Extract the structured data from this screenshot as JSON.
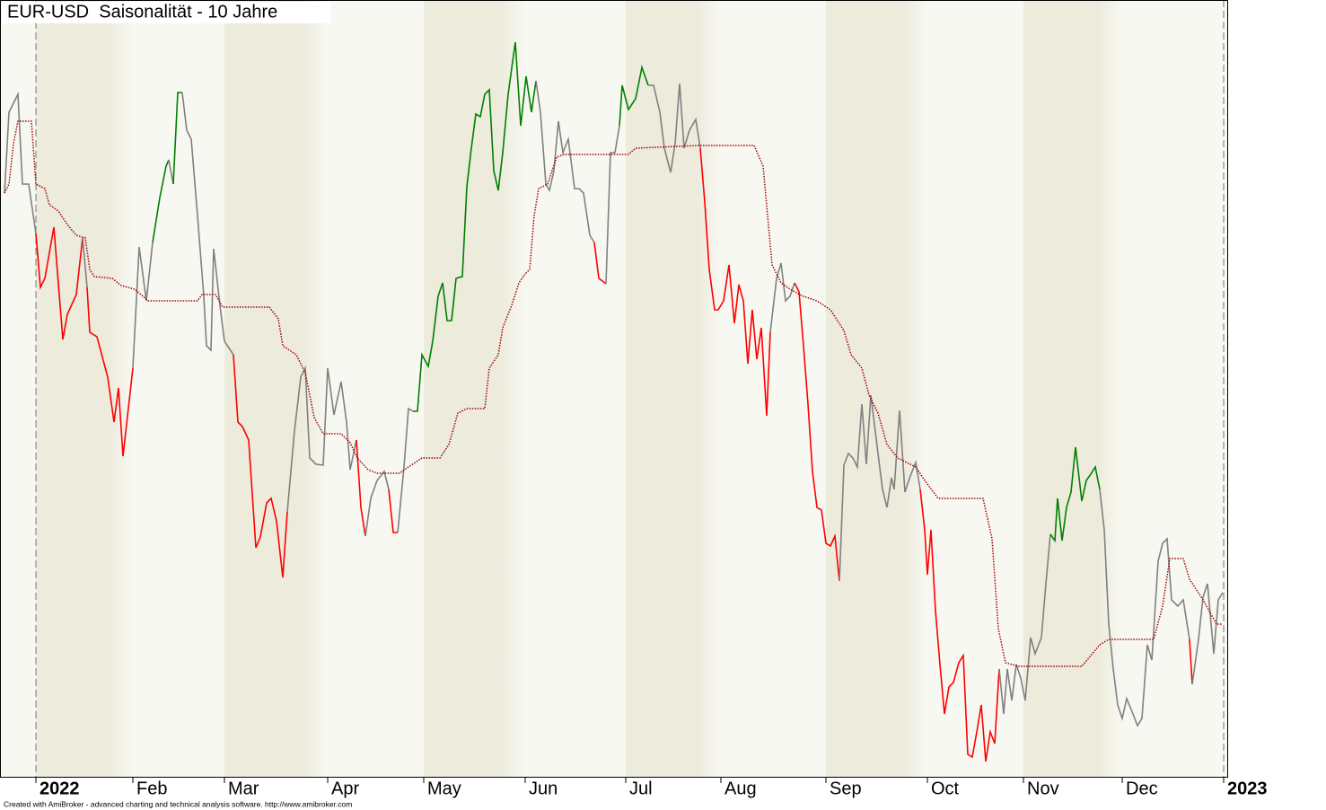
{
  "chart_data": {
    "type": "line",
    "title": "EUR-USD  Saisonalität - 10 Jahre",
    "footer": "Created with AmiBroker - advanced charting and technical analysis software. http://www.amibroker.com",
    "xlim": [
      0,
      1367
    ],
    "ylim": [
      0,
      865
    ],
    "xticks": [
      {
        "value": 40,
        "label": "2022",
        "bold": true
      },
      {
        "value": 148,
        "label": "Feb"
      },
      {
        "value": 250,
        "label": "Mar"
      },
      {
        "value": 365,
        "label": "Apr"
      },
      {
        "value": 472,
        "label": "May"
      },
      {
        "value": 585,
        "label": "Jun"
      },
      {
        "value": 697,
        "label": "Jul"
      },
      {
        "value": 803,
        "label": "Aug"
      },
      {
        "value": 920,
        "label": "Sep"
      },
      {
        "value": 1033,
        "label": "Oct"
      },
      {
        "value": 1140,
        "label": "Nov"
      },
      {
        "value": 1250,
        "label": "Dec"
      },
      {
        "value": 1363,
        "label": "2023",
        "bold": true
      }
    ],
    "band_colors": [
      "#ecebdc",
      "#f8f8f2"
    ],
    "series": [
      {
        "x": [
          5,
          10,
          20,
          25,
          32,
          40,
          45,
          50,
          60,
          70,
          75,
          85,
          92,
          97,
          100,
          108,
          120,
          127,
          132,
          137,
          148,
          155,
          163,
          170,
          178,
          185,
          188,
          193,
          198,
          203,
          208,
          213,
          220,
          227,
          230,
          235,
          238,
          245,
          250,
          260,
          265,
          270,
          277,
          285,
          290,
          297,
          302,
          308,
          315,
          320,
          328,
          335,
          340,
          345,
          352,
          360,
          365,
          372,
          380,
          386,
          390,
          397,
          402,
          407,
          413,
          420,
          428,
          433,
          438,
          443,
          450,
          455,
          460,
          465,
          470,
          477,
          482,
          488,
          493,
          498,
          503,
          508,
          515,
          520,
          525,
          530,
          535,
          540,
          545,
          550,
          555,
          560,
          566,
          574,
          580,
          586,
          592,
          597,
          602,
          608,
          612,
          617,
          622,
          627,
          633,
          640,
          645,
          650,
          657,
          662,
          667,
          675,
          680,
          685,
          690,
          693,
          700,
          708,
          715,
          722,
          728,
          735,
          740,
          747,
          752,
          757,
          762,
          768,
          775,
          780,
          785,
          790,
          796,
          800,
          806,
          812,
          818,
          823,
          828,
          833,
          838,
          843,
          848,
          854,
          858,
          865,
          870,
          875,
          880,
          885,
          890,
          895,
          900,
          905,
          910,
          915,
          920,
          925,
          930,
          935,
          940,
          945,
          950,
          955,
          960,
          965,
          970,
          978,
          983,
          988,
          993,
          996,
          1002,
          1008,
          1014,
          1020,
          1025,
          1030,
          1033,
          1037,
          1042,
          1047,
          1052,
          1057,
          1062,
          1068,
          1073,
          1078,
          1083,
          1088,
          1093,
          1098,
          1103,
          1108,
          1113,
          1118,
          1122,
          1127,
          1132,
          1137,
          1142,
          1148,
          1153,
          1160,
          1165,
          1170,
          1175,
          1178,
          1183,
          1188,
          1193,
          1198,
          1205,
          1210,
          1215,
          1220,
          1225,
          1230,
          1235,
          1240,
          1245,
          1250,
          1255,
          1262,
          1267,
          1272,
          1278,
          1283,
          1290,
          1295,
          1300,
          1305,
          1312,
          1318,
          1325,
          1328,
          1335,
          1340,
          1345,
          1352,
          1357,
          1362
        ],
        "values": [
          650,
          740,
          760,
          660,
          660,
          605,
          545,
          555,
          612,
          487,
          515,
          537,
          600,
          545,
          495,
          490,
          445,
          395,
          433,
          357,
          455,
          590,
          530,
          595,
          645,
          680,
          687,
          660,
          762,
          762,
          720,
          710,
          625,
          535,
          480,
          475,
          588,
          525,
          485,
          470,
          395,
          390,
          375,
          255,
          267,
          305,
          310,
          285,
          222,
          295,
          385,
          445,
          455,
          355,
          348,
          347,
          455,
          403,
          440,
          395,
          342,
          375,
          300,
          268,
          310,
          330,
          340,
          320,
          272,
          272,
          345,
          410,
          407,
          407,
          470,
          457,
          485,
          535,
          550,
          508,
          508,
          555,
          557,
          657,
          700,
          738,
          735,
          760,
          765,
          675,
          653,
          695,
          760,
          818,
          725,
          780,
          740,
          775,
          740,
          660,
          653,
          675,
          730,
          695,
          710,
          655,
          655,
          650,
          603,
          595,
          555,
          549,
          695,
          695,
          725,
          770,
          743,
          755,
          790,
          770,
          770,
          740,
          700,
          673,
          705,
          772,
          700,
          720,
          732,
          700,
          640,
          565,
          520,
          520,
          530,
          570,
          505,
          548,
          530,
          460,
          520,
          465,
          500,
          402,
          495,
          555,
          572,
          530,
          535,
          550,
          540,
          480,
          415,
          340,
          300,
          297,
          260,
          257,
          268,
          218,
          347,
          360,
          355,
          345,
          415,
          348,
          425,
          360,
          320,
          300,
          333,
          320,
          408,
          317,
          335,
          350,
          320,
          275,
          225,
          275,
          185,
          125,
          70,
          100,
          105,
          127,
          135,
          25,
          22,
          50,
          80,
          17,
          50,
          37,
          120,
          70,
          120,
          85,
          125,
          110,
          85,
          155,
          137,
          155,
          215,
          270,
          263,
          310,
          263,
          300,
          317,
          367,
          307,
          330,
          337,
          345,
          320,
          275,
          170,
          120,
          80,
          65,
          87,
          70,
          57,
          65,
          147,
          130,
          240,
          260,
          265,
          197,
          190,
          197,
          153,
          103,
          153,
          200,
          215,
          137,
          197,
          205
        ],
        "colors": [
          "gray",
          "gray",
          "gray",
          "gray",
          "gray",
          "gray",
          "red",
          "red",
          "red",
          "red",
          "red",
          "red",
          "red",
          "gray",
          "red",
          "red",
          "red",
          "red",
          "red",
          "red",
          "red",
          "gray",
          "gray",
          "gray",
          "green",
          "green",
          "green",
          "gray",
          "green",
          "green",
          "gray",
          "gray",
          "gray",
          "gray",
          "gray",
          "gray",
          "gray",
          "gray",
          "gray",
          "gray",
          "red",
          "red",
          "red",
          "red",
          "red",
          "red",
          "red",
          "red",
          "red",
          "red",
          "gray",
          "gray",
          "gray",
          "gray",
          "gray",
          "gray",
          "gray",
          "gray",
          "gray",
          "gray",
          "gray",
          "gray",
          "red",
          "red",
          "gray",
          "gray",
          "gray",
          "gray",
          "red",
          "red",
          "gray",
          "gray",
          "gray",
          "green",
          "green",
          "green",
          "green",
          "green",
          "green",
          "green",
          "green",
          "green",
          "green",
          "green",
          "green",
          "green",
          "green",
          "green",
          "green",
          "green",
          "green",
          "green",
          "green",
          "green",
          "green",
          "green",
          "green",
          "green",
          "gray",
          "gray",
          "gray",
          "gray",
          "gray",
          "gray",
          "gray",
          "gray",
          "gray",
          "gray",
          "gray",
          "gray",
          "red",
          "red",
          "gray",
          "gray",
          "gray",
          "green",
          "green",
          "green",
          "green",
          "green",
          "gray",
          "gray",
          "gray",
          "gray",
          "gray",
          "gray",
          "gray",
          "gray",
          "gray",
          "gray",
          "red",
          "red",
          "red",
          "red",
          "red",
          "red",
          "red",
          "red",
          "red",
          "red",
          "red",
          "red",
          "red",
          "red",
          "red",
          "gray",
          "gray",
          "gray",
          "gray",
          "gray",
          "red",
          "red",
          "red",
          "red",
          "red",
          "red",
          "red",
          "red",
          "red",
          "red",
          "gray",
          "gray",
          "gray",
          "gray",
          "gray",
          "gray",
          "gray",
          "gray",
          "gray",
          "gray",
          "gray",
          "gray",
          "gray",
          "gray",
          "gray",
          "gray",
          "gray",
          "red",
          "red",
          "red",
          "red",
          "red",
          "red",
          "red",
          "red",
          "red",
          "red",
          "red",
          "red",
          "red",
          "red",
          "red",
          "red",
          "red",
          "red",
          "gray",
          "gray",
          "gray",
          "gray",
          "gray",
          "gray",
          "gray",
          "gray",
          "gray",
          "gray",
          "gray",
          "green",
          "green",
          "green",
          "green",
          "green",
          "green",
          "green",
          "green",
          "green",
          "green",
          "green",
          "gray",
          "gray",
          "gray",
          "gray",
          "gray",
          "gray",
          "gray",
          "gray",
          "gray",
          "gray",
          "gray",
          "gray",
          "gray",
          "gray",
          "gray",
          "gray",
          "gray",
          "gray",
          "red",
          "gray",
          "gray",
          "gray",
          "gray",
          "gray",
          "gray"
        ]
      },
      {
        "x": [
          5,
          10,
          15,
          20,
          35,
          40,
          50,
          55,
          65,
          75,
          85,
          95,
          100,
          105,
          125,
          135,
          150,
          165,
          220,
          225,
          240,
          248,
          300,
          310,
          315,
          330,
          340,
          350,
          360,
          380,
          390,
          398,
          410,
          420,
          445,
          455,
          470,
          490,
          500,
          510,
          520,
          540,
          545,
          555,
          560,
          570,
          578,
          585,
          590,
          595,
          600,
          610,
          615,
          620,
          628,
          700,
          708,
          780,
          840,
          850,
          855,
          860,
          870,
          880,
          895,
          910,
          925,
          940,
          948,
          960,
          968,
          978,
          988,
          1000,
          1020,
          1030,
          1045,
          1095,
          1105,
          1112,
          1120,
          1135,
          1205,
          1215,
          1225,
          1235,
          1285,
          1295,
          1303,
          1318,
          1325,
          1340,
          1355,
          1362
        ],
        "values": [
          650,
          660,
          705,
          730,
          730,
          660,
          655,
          637,
          630,
          615,
          603,
          600,
          565,
          557,
          555,
          547,
          543,
          530,
          530,
          537,
          537,
          523,
          523,
          510,
          480,
          470,
          450,
          400,
          382,
          382,
          372,
          355,
          342,
          338,
          338,
          345,
          355,
          355,
          370,
          405,
          410,
          410,
          455,
          470,
          500,
          525,
          550,
          560,
          565,
          625,
          655,
          660,
          675,
          690,
          693,
          693,
          700,
          703,
          703,
          680,
          625,
          570,
          550,
          543,
          535,
          530,
          520,
          497,
          470,
          455,
          425,
          405,
          370,
          355,
          345,
          330,
          310,
          310,
          265,
          165,
          127,
          123,
          123,
          135,
          147,
          153,
          153,
          190,
          243,
          243,
          220,
          197,
          170,
          170
        ],
        "color": "#a00000",
        "style": "dotted"
      }
    ]
  }
}
